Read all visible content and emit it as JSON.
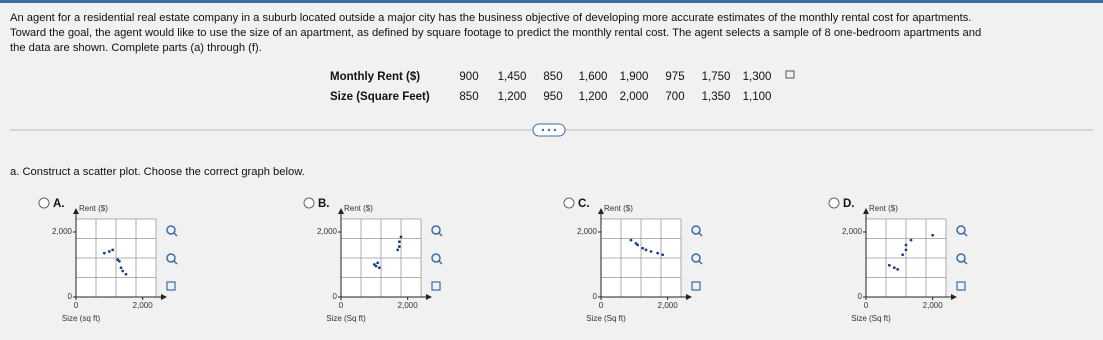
{
  "intro_lines": [
    "An agent for a residential real estate company in a suburb located outside a major city has the business objective of developing more accurate estimates of the monthly rental cost for apartments.",
    "Toward the goal, the agent would like to use the size of an apartment, as defined by square footage to predict the monthly rental cost. The agent selects a sample of 8 one-bedroom apartments and",
    "the data are shown. Complete parts (a) through (f)."
  ],
  "table": {
    "rows": [
      {
        "label": "Monthly Rent ($)",
        "values": [
          "900",
          "1,450",
          "850",
          "1,600",
          "1,900",
          "975",
          "1,750",
          "1,300"
        ]
      },
      {
        "label": "Size (Square Feet)",
        "values": [
          "850",
          "1,200",
          "950",
          "1,200",
          "2,000",
          "700",
          "1,350",
          "1,100"
        ]
      }
    ]
  },
  "part_a": "a. Construct a scatter plot. Choose the correct graph below.",
  "options": [
    {
      "letter": "A.",
      "chart": {
        "type": "scatter",
        "y_label": "Rent ($)",
        "x_label": "Size (sq ft)",
        "xlim": [
          0,
          2400
        ],
        "ylim": [
          0,
          2400
        ],
        "xticks": [
          0,
          {
            "value": 2000,
            "label": "2,000"
          }
        ],
        "yticks": [
          0,
          {
            "value": 2000,
            "label": "2,000"
          }
        ],
        "xgrid": [
          600,
          1200,
          1800,
          2400
        ],
        "ygrid": [
          600,
          1200,
          1800,
          2400
        ],
        "x": [
          850,
          1000,
          1100,
          1250,
          1300,
          1350,
          1400,
          1500
        ],
        "y": [
          1350,
          1400,
          1450,
          1150,
          1100,
          900,
          800,
          700
        ]
      }
    },
    {
      "letter": "B.",
      "chart": {
        "type": "scatter",
        "y_label": "Rent ($)",
        "x_label": "Size (Sq ft)",
        "xlim": [
          0,
          2400
        ],
        "ylim": [
          0,
          2400
        ],
        "xticks": [
          0,
          {
            "value": 2000,
            "label": "2,000"
          }
        ],
        "yticks": [
          0,
          {
            "value": 2000,
            "label": "2,000"
          }
        ],
        "xgrid": [
          600,
          1200,
          1800,
          2400
        ],
        "ygrid": [
          600,
          1200,
          1800,
          2400
        ],
        "x": [
          1800,
          1750,
          1750,
          1700,
          1000,
          1050,
          1150,
          1100
        ],
        "y": [
          1850,
          1700,
          1550,
          1450,
          1000,
          950,
          900,
          1050
        ]
      }
    },
    {
      "letter": "C.",
      "chart": {
        "type": "scatter",
        "y_label": "Rent ($)",
        "x_label": "Size (Sq ft)",
        "xlim": [
          0,
          2400
        ],
        "ylim": [
          0,
          2400
        ],
        "xticks": [
          0,
          {
            "value": 2000,
            "label": "2,000"
          }
        ],
        "yticks": [
          0,
          {
            "value": 2000,
            "label": "2,000"
          }
        ],
        "xgrid": [
          600,
          1200,
          1800,
          2400
        ],
        "ygrid": [
          600,
          1200,
          1800,
          2400
        ],
        "x": [
          900,
          1050,
          1100,
          1250,
          1350,
          1500,
          1700,
          1850
        ],
        "y": [
          1750,
          1650,
          1600,
          1500,
          1450,
          1400,
          1350,
          1300
        ]
      }
    },
    {
      "letter": "D.",
      "chart": {
        "type": "scatter",
        "y_label": "Rent ($)",
        "x_label": "Size (Sq ft)",
        "xlim": [
          0,
          2400
        ],
        "ylim": [
          0,
          2400
        ],
        "xticks": [
          0,
          {
            "value": 2000,
            "label": "2,000"
          }
        ],
        "yticks": [
          0,
          {
            "value": 2000,
            "label": "2,000"
          }
        ],
        "xgrid": [
          600,
          1200,
          1800,
          2400
        ],
        "ygrid": [
          600,
          1200,
          1800,
          2400
        ],
        "x": [
          850,
          1200,
          950,
          1200,
          2000,
          700,
          1350,
          1100
        ],
        "y": [
          900,
          1450,
          850,
          1600,
          1900,
          975,
          1750,
          1300
        ]
      }
    }
  ]
}
